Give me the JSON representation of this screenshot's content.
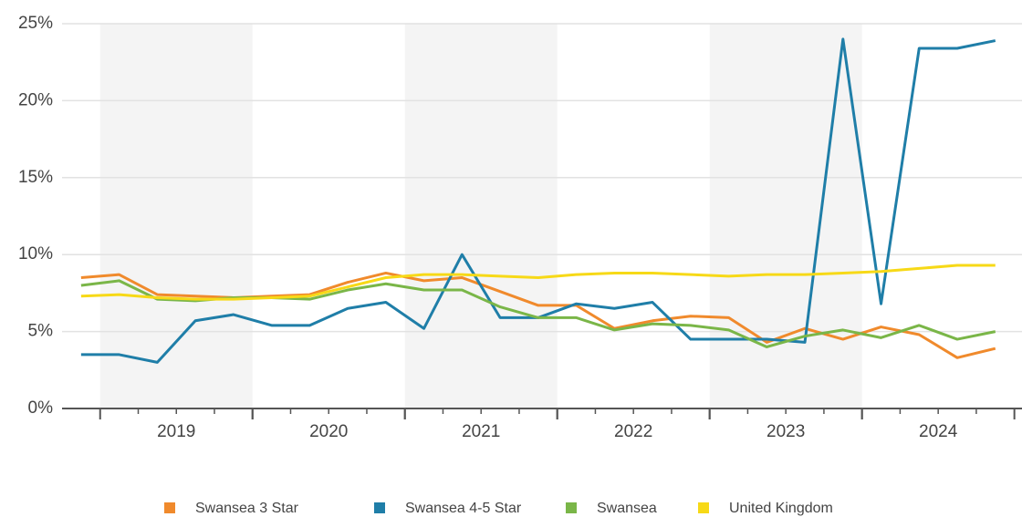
{
  "chart_data": {
    "type": "line",
    "x": [
      2018.875,
      2019.125,
      2019.375,
      2019.625,
      2019.875,
      2020.125,
      2020.375,
      2020.625,
      2020.875,
      2021.125,
      2021.375,
      2021.625,
      2021.875,
      2022.125,
      2022.375,
      2022.625,
      2022.875,
      2023.125,
      2023.375,
      2023.625,
      2023.875,
      2024.125,
      2024.375,
      2024.625,
      2024.875
    ],
    "series": [
      {
        "name": "Swansea 3 Star",
        "color": "#f08a2c",
        "values": [
          8.5,
          8.7,
          7.4,
          7.3,
          7.2,
          7.3,
          7.4,
          8.2,
          8.8,
          8.3,
          8.5,
          7.6,
          6.7,
          6.7,
          5.2,
          5.7,
          6.0,
          5.9,
          4.3,
          5.2,
          4.5,
          5.3,
          4.8,
          3.3,
          3.9
        ]
      },
      {
        "name": "Swansea 4-5 Star",
        "color": "#1f7ea8",
        "values": [
          3.5,
          3.5,
          3.0,
          5.7,
          6.1,
          5.4,
          5.4,
          6.5,
          6.9,
          5.2,
          10.0,
          5.9,
          5.9,
          6.8,
          6.5,
          6.9,
          4.5,
          4.5,
          4.5,
          4.3,
          24.0,
          6.8,
          23.4,
          23.4,
          23.9
        ]
      },
      {
        "name": "Swansea",
        "color": "#7ab648",
        "values": [
          8.0,
          8.3,
          7.1,
          7.0,
          7.2,
          7.2,
          7.1,
          7.7,
          8.1,
          7.7,
          7.7,
          6.6,
          5.9,
          5.9,
          5.1,
          5.5,
          5.4,
          5.1,
          4.0,
          4.7,
          5.1,
          4.6,
          5.4,
          4.5,
          5.0
        ]
      },
      {
        "name": "United Kingdom",
        "color": "#f7d917",
        "values": [
          7.3,
          7.4,
          7.2,
          7.1,
          7.1,
          7.2,
          7.3,
          7.9,
          8.5,
          8.7,
          8.7,
          8.6,
          8.5,
          8.7,
          8.8,
          8.8,
          8.7,
          8.6,
          8.7,
          8.7,
          8.8,
          8.9,
          9.1,
          9.3,
          9.3
        ]
      }
    ],
    "xlim": [
      2018.75,
      2025.05
    ],
    "xticks": [
      {
        "value": 2019.5,
        "label": "2019"
      },
      {
        "value": 2020.5,
        "label": "2020"
      },
      {
        "value": 2021.5,
        "label": "2021"
      },
      {
        "value": 2022.5,
        "label": "2022"
      },
      {
        "value": 2023.5,
        "label": "2023"
      },
      {
        "value": 2024.5,
        "label": "2024"
      }
    ],
    "ylim": [
      0,
      25
    ],
    "yticks": [
      {
        "value": 0,
        "label": "0%"
      },
      {
        "value": 5,
        "label": "5%"
      },
      {
        "value": 10,
        "label": "10%"
      },
      {
        "value": 15,
        "label": "15%"
      },
      {
        "value": 20,
        "label": "20%"
      },
      {
        "value": 25,
        "label": "25%"
      }
    ],
    "grid": true,
    "legend": "bottom"
  }
}
